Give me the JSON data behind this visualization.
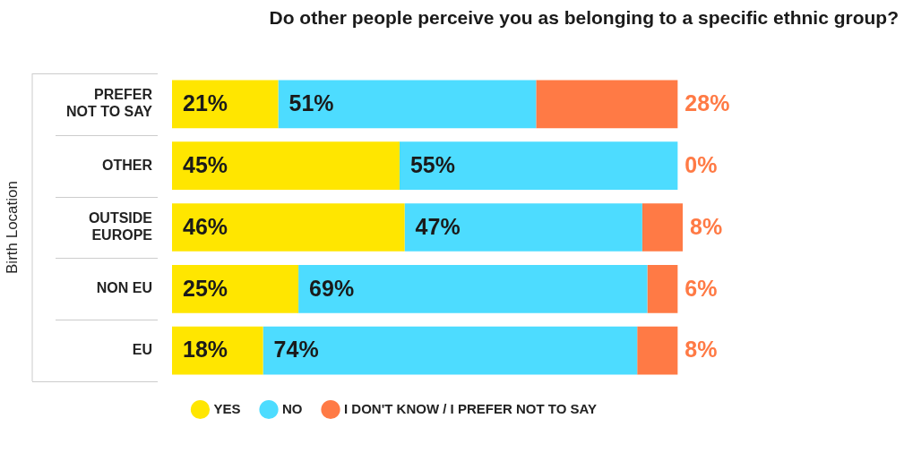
{
  "chart_data": {
    "type": "bar",
    "orientation": "horizontal",
    "stacked": true,
    "title": "Do other people perceive you as belonging to a specific ethnic group?",
    "ylabel": "Birth Location",
    "categories": [
      "PREFER NOT TO SAY",
      "OTHER",
      "OUTSIDE EUROPE",
      "NON EU",
      "EU"
    ],
    "series": [
      {
        "name": "YES",
        "color": "#ffe600",
        "values": [
          21,
          45,
          46,
          25,
          18
        ],
        "value_labels": [
          "21%",
          "45%",
          "46%",
          "25%",
          "18%"
        ]
      },
      {
        "name": "NO",
        "color": "#4ddcff",
        "values": [
          51,
          55,
          47,
          69,
          74
        ],
        "value_labels": [
          "51%",
          "55%",
          "47%",
          "69%",
          "74%"
        ]
      },
      {
        "name": "I DON'T KNOW / I PREFER NOT TO SAY",
        "color": "#ff7a45",
        "values": [
          28,
          0,
          8,
          6,
          8
        ],
        "value_labels": [
          "28%",
          "0%",
          "8%",
          "6%",
          "8%"
        ]
      }
    ],
    "tick_labels": "y",
    "legend": "bottom left"
  }
}
